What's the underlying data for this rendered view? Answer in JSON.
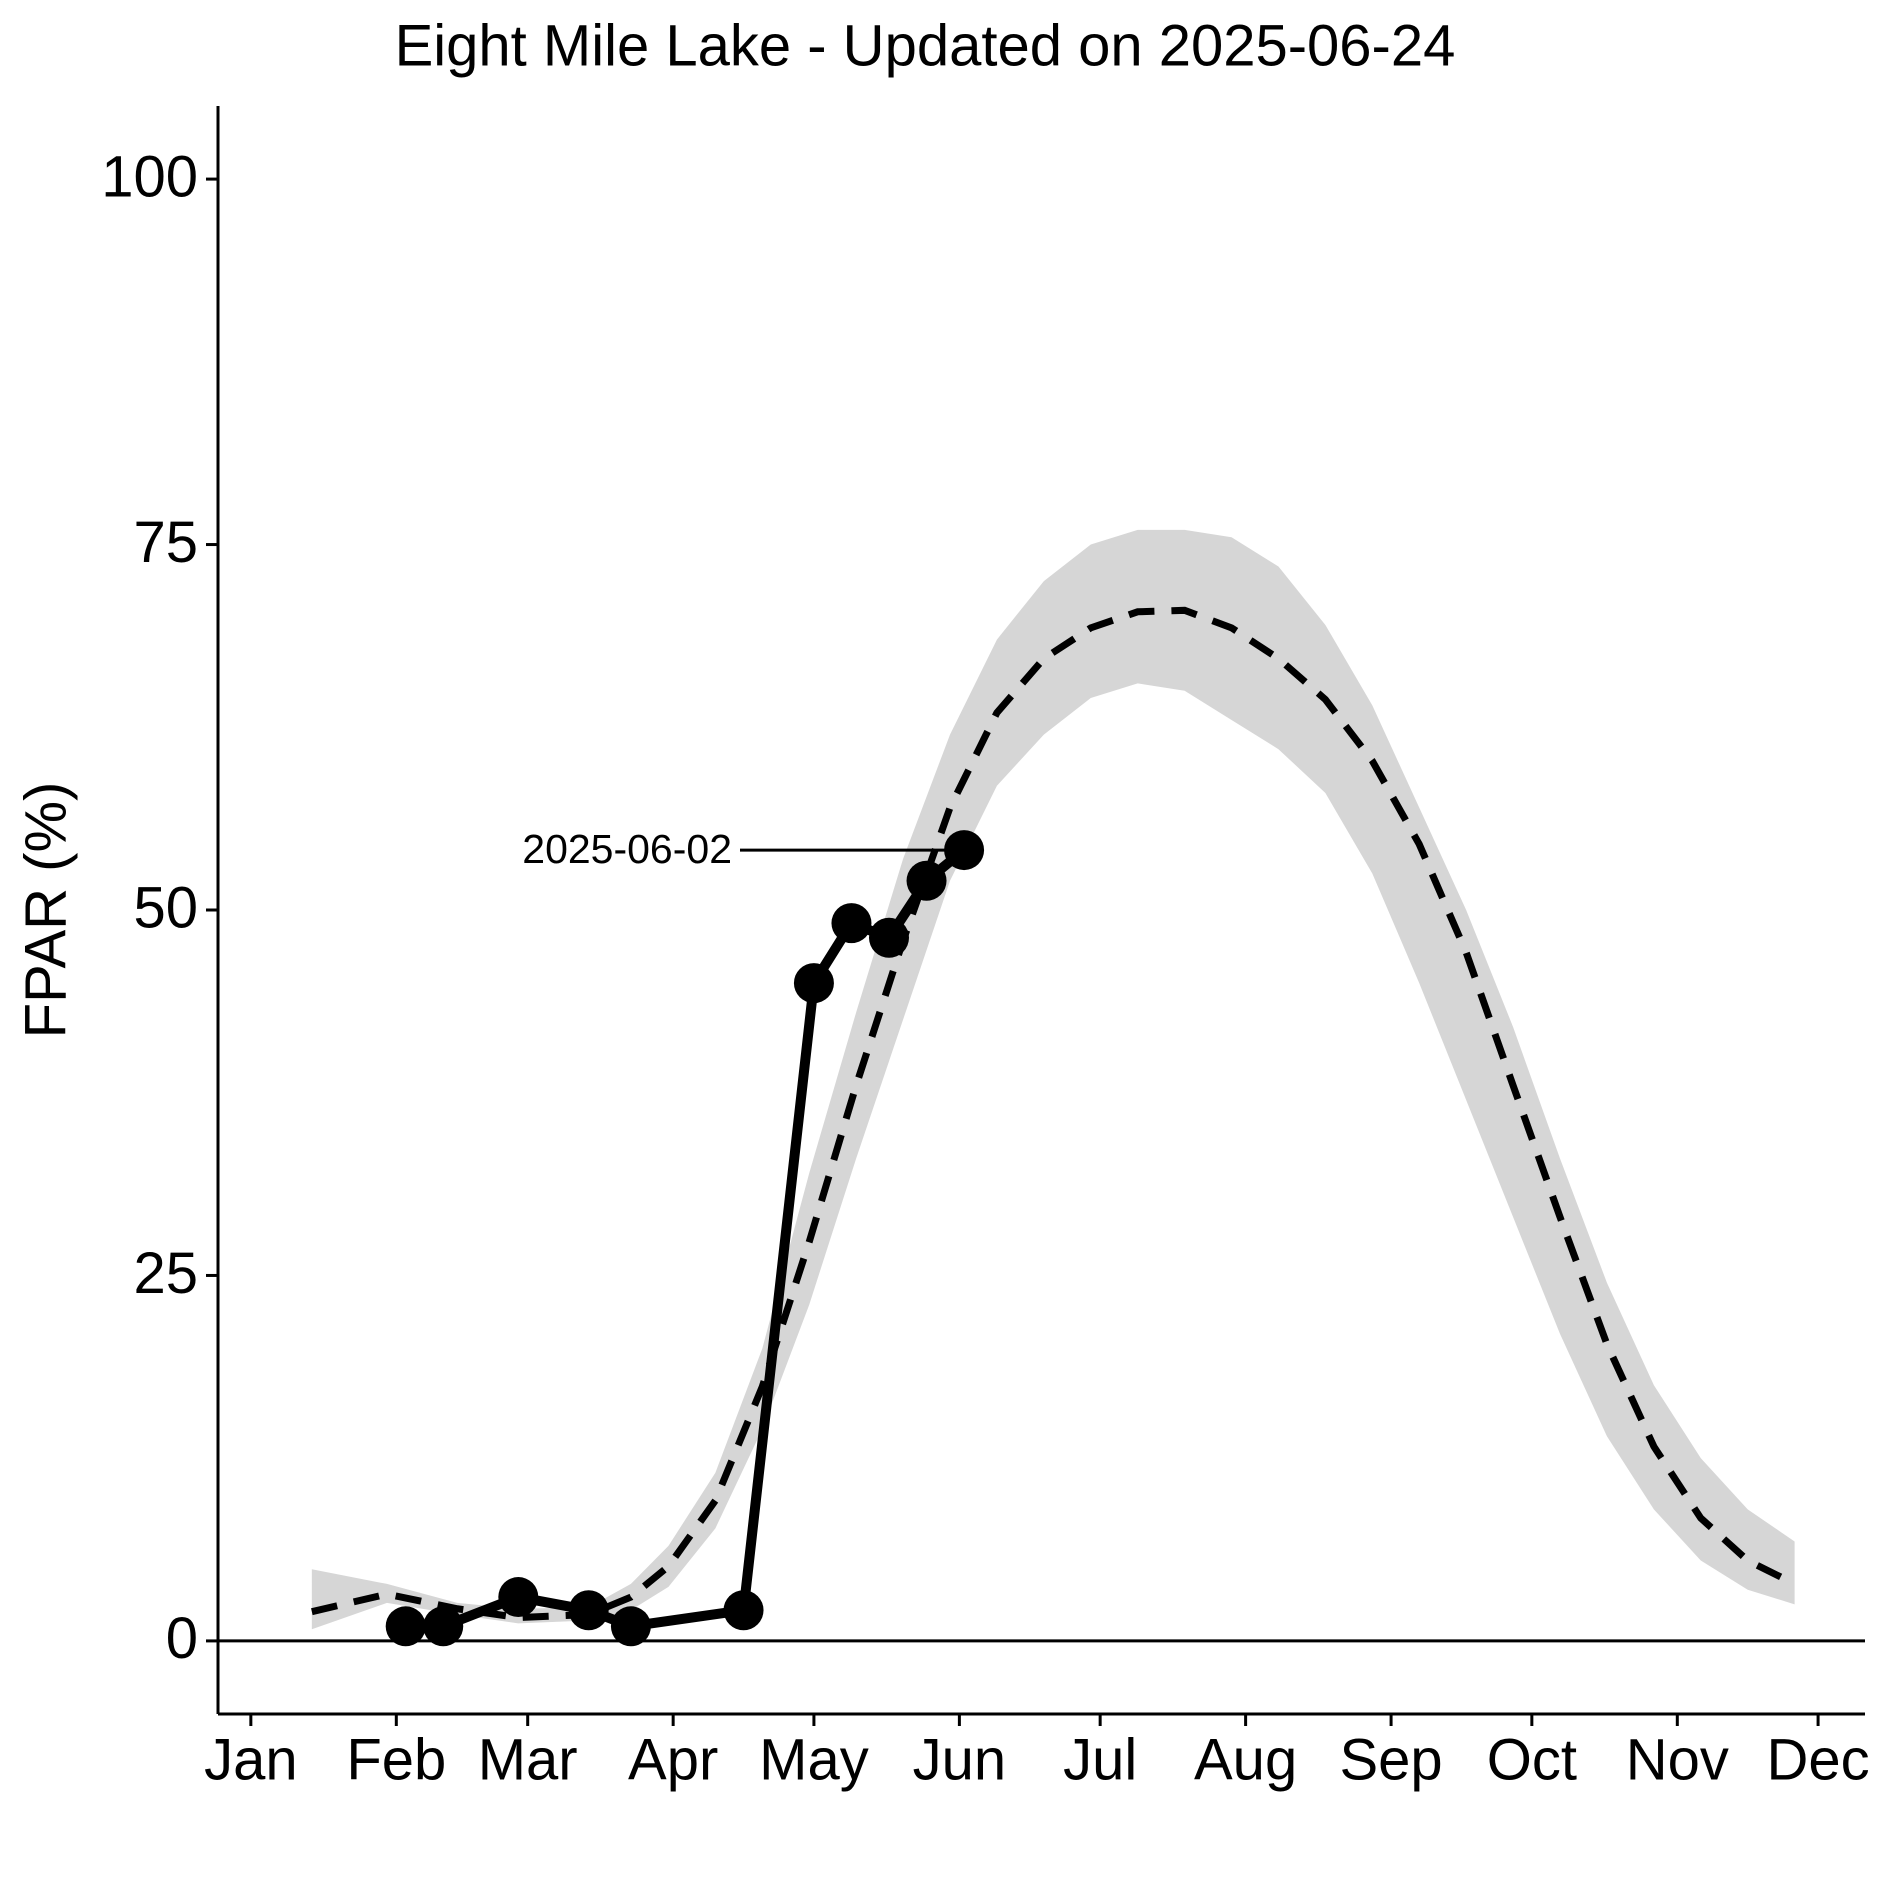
{
  "chart_data": {
    "type": "line",
    "title": "Eight Mile Lake - Updated on 2025-06-24",
    "y_label": "FPAR (%)",
    "xlim": [
      -6,
      345
    ],
    "ylim": [
      -5,
      105
    ],
    "xticks": [
      {
        "value": 1,
        "label": "Jan"
      },
      {
        "value": 32,
        "label": "Feb"
      },
      {
        "value": 60,
        "label": "Mar"
      },
      {
        "value": 91,
        "label": "Apr"
      },
      {
        "value": 121,
        "label": "May"
      },
      {
        "value": 152,
        "label": "Jun"
      },
      {
        "value": 182,
        "label": "Jul"
      },
      {
        "value": 213,
        "label": "Aug"
      },
      {
        "value": 244,
        "label": "Sep"
      },
      {
        "value": 274,
        "label": "Oct"
      },
      {
        "value": 305,
        "label": "Nov"
      },
      {
        "value": 335,
        "label": "Dec"
      }
    ],
    "yticks": [
      0,
      25,
      50,
      75,
      100
    ],
    "hline": 0,
    "x": [
      34,
      42,
      58,
      73,
      82,
      106,
      121,
      129,
      137,
      145,
      153
    ],
    "values": [
      1.0,
      1.0,
      3.0,
      2.1,
      1.0,
      2.1,
      45.0,
      49.1,
      48.1,
      52.0,
      54.1
    ],
    "color": "#000000",
    "annotation": "2025-06-02",
    "mean": {
      "color": "#000000",
      "x": [
        14,
        30,
        45,
        58,
        73,
        82,
        90,
        100,
        110,
        120,
        130,
        140,
        150,
        160,
        170,
        180,
        190,
        200,
        210,
        220,
        230,
        240,
        250,
        260,
        270,
        280,
        290,
        300,
        310,
        320,
        330
      ],
      "values": [
        2.0,
        3.2,
        2.2,
        1.6,
        1.8,
        3.0,
        5.1,
        9.6,
        17.4,
        27.3,
        38,
        47.9,
        57,
        63.5,
        67.2,
        69.3,
        70.4,
        70.5,
        69.3,
        67.2,
        64.4,
        60.2,
        54.5,
        47.1,
        38,
        29,
        20.3,
        13.3,
        8.4,
        5.5,
        3.9
      ]
    },
    "band": {
      "color": "#d6d6d6",
      "x": [
        14,
        30,
        45,
        58,
        73,
        82,
        90,
        100,
        110,
        120,
        130,
        140,
        150,
        160,
        170,
        180,
        190,
        200,
        210,
        220,
        230,
        240,
        250,
        260,
        270,
        280,
        290,
        300,
        310,
        320,
        330
      ],
      "upper": [
        4.9,
        3.9,
        2.6,
        2.2,
        2.3,
        3.9,
        6.5,
        11.5,
        20,
        32,
        43,
        53.5,
        62,
        68.5,
        72.5,
        75,
        76,
        76,
        75.5,
        73.5,
        69.5,
        64,
        57,
        50,
        42,
        33,
        24.5,
        17.5,
        12.5,
        9,
        6.8
      ],
      "lower": [
        0.8,
        2.6,
        1.8,
        1.2,
        1.4,
        2.1,
        3.7,
        7.7,
        14.5,
        23,
        33,
        42.5,
        52,
        58.5,
        62,
        64.5,
        65.5,
        65,
        63,
        61,
        58,
        52.5,
        45,
        37,
        29,
        21,
        14,
        9,
        5.5,
        3.5,
        2.5
      ]
    }
  }
}
